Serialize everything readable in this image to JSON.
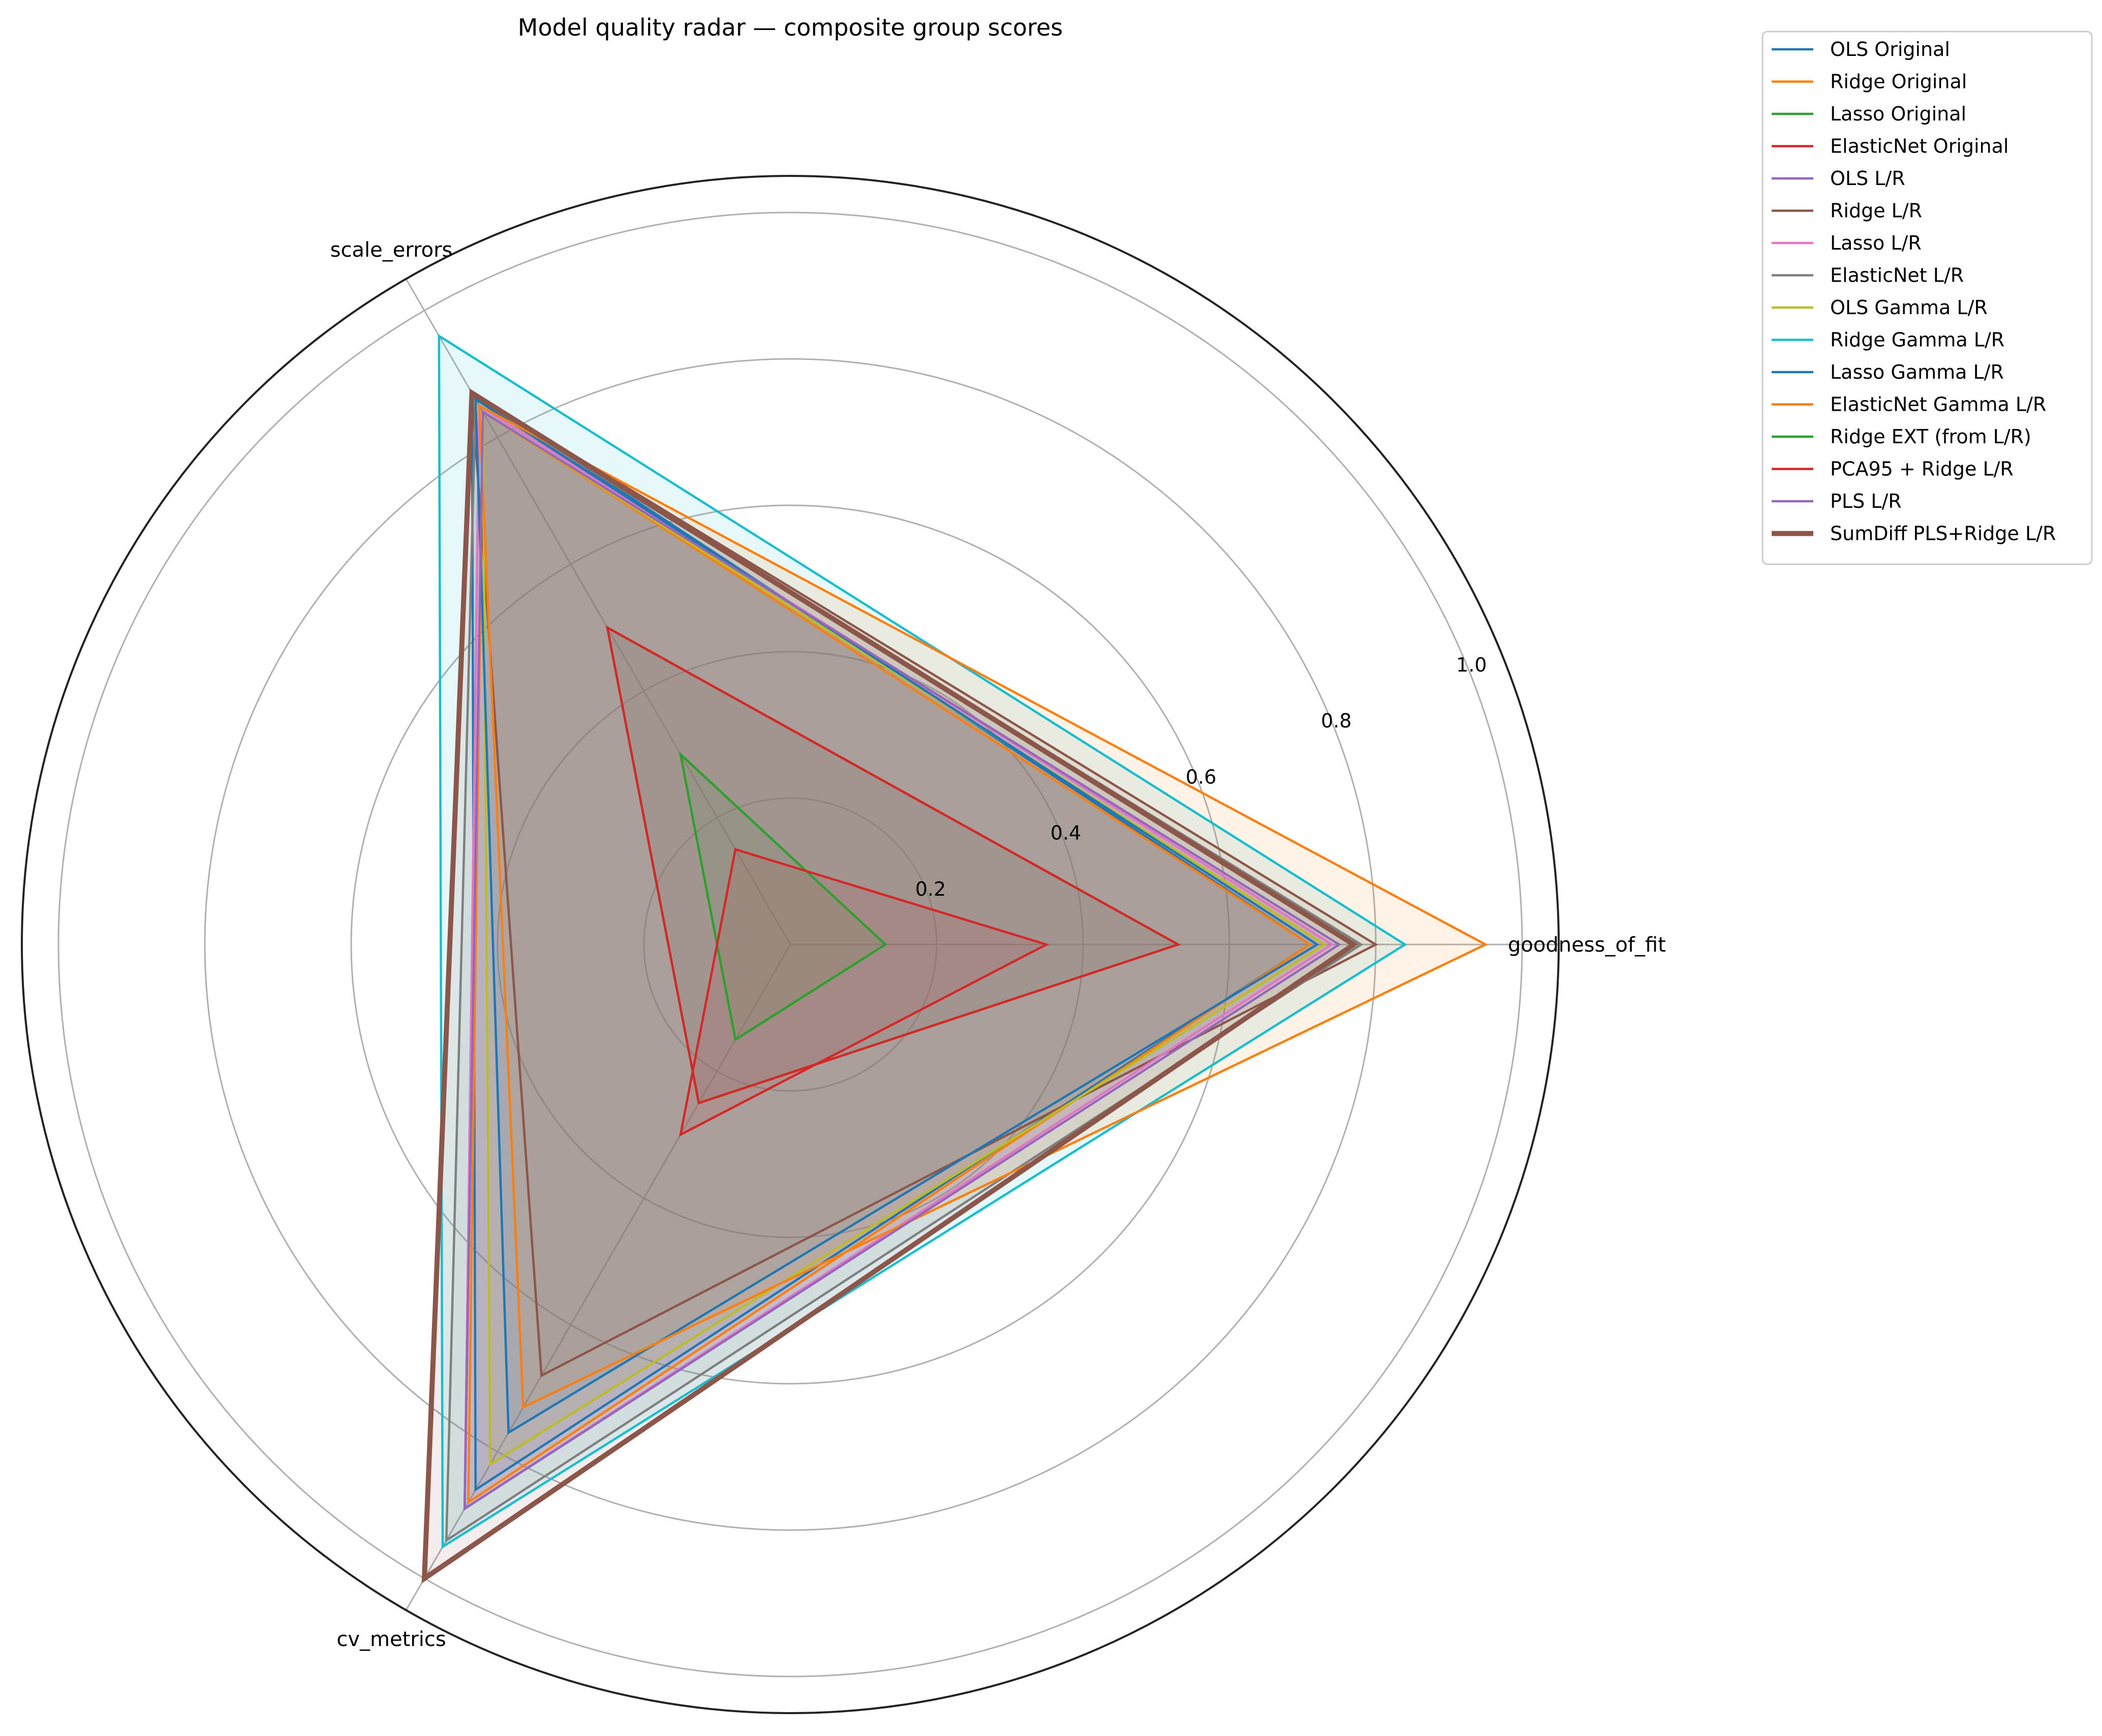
{
  "chart_data": {
    "type": "radar",
    "title": "Model quality radar — composite group scores",
    "axes": [
      "goodness_of_fit",
      "scale_errors",
      "cv_metrics"
    ],
    "rlim": [
      0,
      1.05
    ],
    "r_ticks": [
      0.2,
      0.4,
      0.6,
      0.8,
      1.0
    ],
    "r_tick_labels": [
      "0.2",
      "0.4",
      "0.6",
      "0.8",
      "1.0"
    ],
    "grid": true,
    "legend_position": "outside-top-right",
    "series": [
      {
        "name": "OLS Original",
        "values": [
          0.71,
          0.87,
          0.86
        ],
        "color": "#1f77b4"
      },
      {
        "name": "Ridge Original",
        "values": [
          0.71,
          0.84,
          0.88
        ],
        "color": "#ff7f0e"
      },
      {
        "name": "Lasso Original",
        "values": [
          0.53,
          0.5,
          0.25
        ],
        "color": "#2ca02c"
      },
      {
        "name": "ElasticNet Original",
        "values": [
          0.53,
          0.5,
          0.25
        ],
        "color": "#d62728"
      },
      {
        "name": "OLS L/R",
        "values": [
          0.74,
          0.85,
          0.89
        ],
        "color": "#9467bd"
      },
      {
        "name": "Ridge L/R",
        "values": [
          0.8,
          0.87,
          0.68
        ],
        "color": "#8c564b"
      },
      {
        "name": "Lasso L/R",
        "values": [
          0.74,
          0.85,
          0.89
        ],
        "color": "#e377c2"
      },
      {
        "name": "ElasticNet L/R",
        "values": [
          0.78,
          0.86,
          0.94
        ],
        "color": "#7f7f7f"
      },
      {
        "name": "OLS Gamma L/R",
        "values": [
          0.73,
          0.84,
          0.82
        ],
        "color": "#bcbd22"
      },
      {
        "name": "Ridge Gamma L/R",
        "values": [
          0.84,
          0.96,
          0.95
        ],
        "color": "#17becf"
      },
      {
        "name": "Lasso Gamma L/R",
        "values": [
          0.72,
          0.86,
          0.77
        ],
        "color": "#1f77b4"
      },
      {
        "name": "ElasticNet Gamma L/R",
        "values": [
          0.95,
          0.85,
          0.73
        ],
        "color": "#ff7f0e"
      },
      {
        "name": "Ridge EXT (from L/R)",
        "values": [
          0.13,
          0.3,
          0.15
        ],
        "color": "#2ca02c"
      },
      {
        "name": "PCA95 + Ridge L/R",
        "values": [
          0.35,
          0.15,
          0.3
        ],
        "color": "#d62728"
      },
      {
        "name": "PLS L/R",
        "values": [
          0.75,
          0.84,
          0.89
        ],
        "color": "#9467bd"
      },
      {
        "name": "SumDiff PLS+Ridge L/R",
        "values": [
          0.77,
          0.87,
          1.0
        ],
        "color": "#8c564b",
        "emphasis": true
      }
    ]
  }
}
